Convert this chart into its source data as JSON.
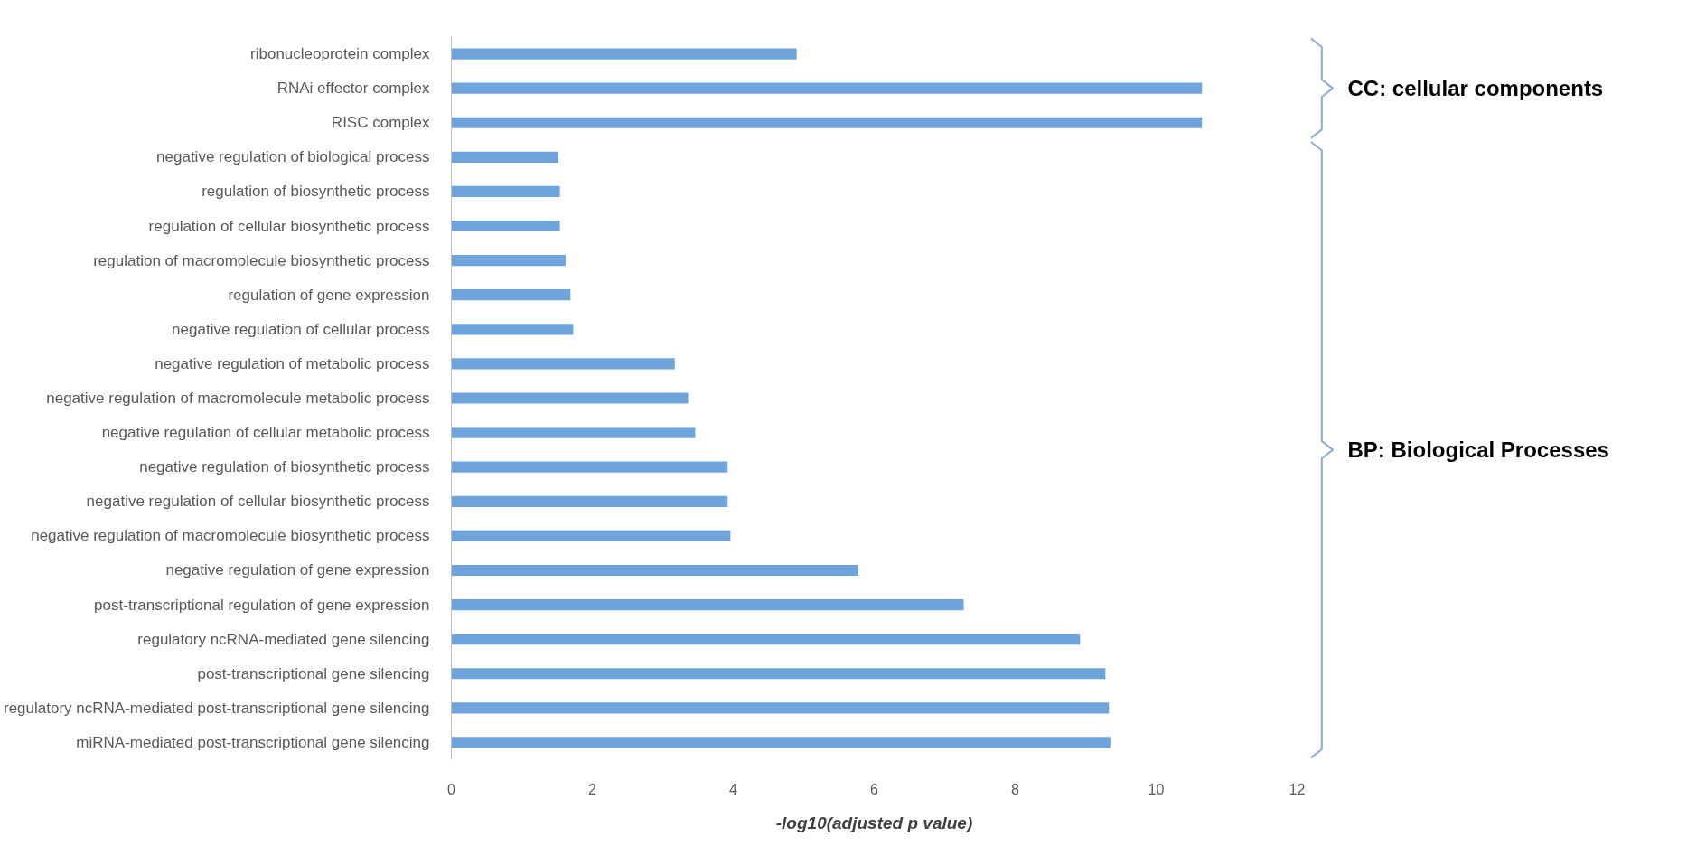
{
  "chart_data": {
    "type": "bar",
    "orientation": "horizontal",
    "xlabel": "-log10(adjusted p value)",
    "categories": [
      "ribonucleoprotein complex",
      "RNAi effector complex",
      "RISC complex",
      "negative regulation of biological process",
      "regulation of biosynthetic process",
      "regulation of cellular biosynthetic process",
      "regulation of macromolecule biosynthetic process",
      "regulation of gene expression",
      "negative regulation of cellular process",
      "negative regulation of metabolic process",
      "negative regulation of macromolecule metabolic process",
      "negative regulation of cellular metabolic process",
      "negative regulation of biosynthetic process",
      "negative regulation of cellular biosynthetic process",
      "negative regulation of macromolecule biosynthetic process",
      "negative regulation of gene expression",
      "post-transcriptional regulation of gene expression",
      "regulatory ncRNA-mediated gene silencing",
      "post-transcriptional gene silencing",
      "regulatory ncRNA-mediated post-transcriptional gene silencing",
      "miRNA-mediated post-transcriptional gene silencing"
    ],
    "values": [
      4.9,
      10.65,
      10.65,
      1.52,
      1.54,
      1.54,
      1.62,
      1.69,
      1.73,
      3.17,
      3.36,
      3.46,
      3.92,
      3.92,
      3.96,
      5.77,
      7.27,
      8.92,
      9.28,
      9.33,
      9.35
    ],
    "color": "#6fa3db",
    "xlim": [
      0,
      12
    ],
    "xticks": [
      0,
      2,
      4,
      6,
      8,
      10,
      12
    ],
    "grid": false,
    "annotations": [
      "CC: cellular components",
      "BP: Biological Processes"
    ]
  }
}
